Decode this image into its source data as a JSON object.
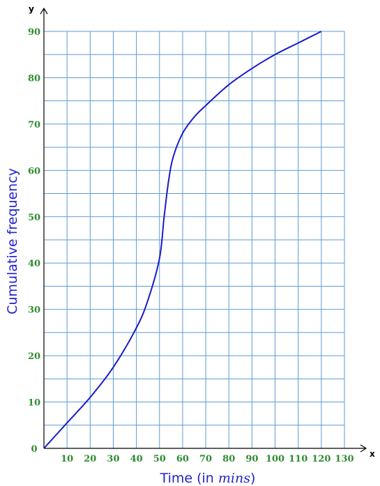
{
  "chart_data": {
    "type": "line",
    "title": "",
    "xlabel_prefix": "Time (in ",
    "xlabel_unit": "mins",
    "xlabel_suffix": ")",
    "ylabel": "Cumulative frequency",
    "x_axis_letter": "x",
    "y_axis_letter": "y",
    "xlim": [
      0,
      130
    ],
    "ylim": [
      0,
      90
    ],
    "x_ticks": [
      10,
      20,
      30,
      40,
      50,
      60,
      70,
      80,
      90,
      100,
      110,
      120,
      130
    ],
    "y_ticks": [
      0,
      10,
      20,
      30,
      40,
      50,
      60,
      70,
      80,
      90
    ],
    "grid": true,
    "series": [
      {
        "x": [
          0,
          10,
          20,
          30,
          40,
          45,
          50,
          52,
          54,
          56,
          60,
          65,
          70,
          80,
          90,
          100,
          110,
          120
        ],
        "y": [
          0,
          5.5,
          11,
          17.5,
          26,
          32,
          41,
          50,
          58,
          63,
          68,
          71.5,
          74,
          78.5,
          82,
          85,
          87.5,
          90
        ]
      }
    ],
    "colors": {
      "grid": "#5b9bd5",
      "curve": "#1a1acc",
      "tick_labels": "#2e8b2e",
      "axis_titles": "#2222cc"
    }
  }
}
